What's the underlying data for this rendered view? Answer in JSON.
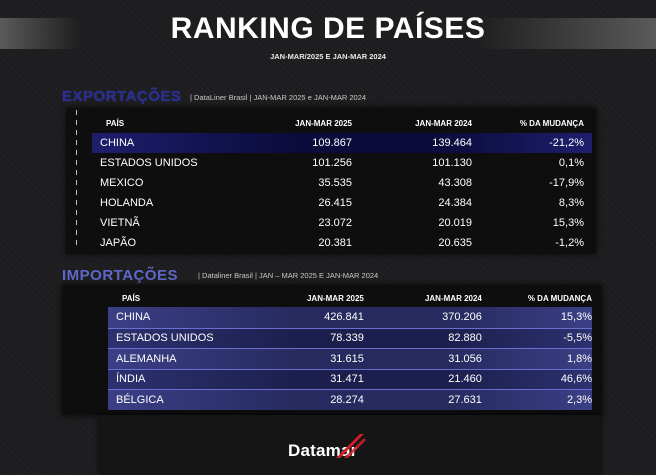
{
  "header": {
    "title": "RANKING DE PAÍSES",
    "subtitle": "JAN-MAR/2025 E JAN-MAR 2024"
  },
  "colors": {
    "highlight_row": "#0b0b3c",
    "stripe_row": "#262a5e",
    "exports_title": "#2a2f8f",
    "imports_title": "#5f68c9",
    "logo_accent": "#d0202a"
  },
  "exports": {
    "title": "EXPORTAÇÕES",
    "note": "| DataLiner Brasil | JAN-MAR 2025 e JAN-MAR 2024",
    "columns": [
      "PAÍS",
      "JAN-MAR 2025",
      "JAN-MAR 2024",
      "% DA MUDANÇA"
    ],
    "rows": [
      {
        "country": "CHINA",
        "v2025": "109.867",
        "v2024": "139.464",
        "pct": "-21,2%"
      },
      {
        "country": "ESTADOS UNIDOS",
        "v2025": "101.256",
        "v2024": "101.130",
        "pct": "0,1%"
      },
      {
        "country": "MEXICO",
        "v2025": "35.535",
        "v2024": "43.308",
        "pct": "-17,9%"
      },
      {
        "country": "HOLANDA",
        "v2025": "26.415",
        "v2024": "24.384",
        "pct": "8,3%"
      },
      {
        "country": "VIETNÃ",
        "v2025": "23.072",
        "v2024": "20.019",
        "pct": "15,3%"
      },
      {
        "country": "JAPÃO",
        "v2025": "20.381",
        "v2024": "20.635",
        "pct": "-1,2%"
      }
    ]
  },
  "imports": {
    "title": "IMPORTAÇÕES",
    "note": "| Dataliner Brasil | JAN – MAR 2025  E JAN-MAR 2024",
    "columns": [
      "PAÍS",
      "JAN-MAR 2025",
      "JAN-MAR 2024",
      "% DA MUDANÇA"
    ],
    "rows": [
      {
        "country": "CHINA",
        "v2025": "426.841",
        "v2024": "370.206",
        "pct": "15,3%"
      },
      {
        "country": "ESTADOS UNIDOS",
        "v2025": "78.339",
        "v2024": "82.880",
        "pct": "-5,5%"
      },
      {
        "country": "ALEMANHA",
        "v2025": "31.615",
        "v2024": "31.056",
        "pct": "1,8%"
      },
      {
        "country": "ÍNDIA",
        "v2025": "31.471",
        "v2024": "21.460",
        "pct": "46,6%"
      },
      {
        "country": "BÉLGICA",
        "v2025": "28.274",
        "v2024": "27.631",
        "pct": "2,3%"
      }
    ]
  },
  "footer": {
    "logo_text": "Datamar",
    "logo_icon": "slash-mark-icon"
  }
}
